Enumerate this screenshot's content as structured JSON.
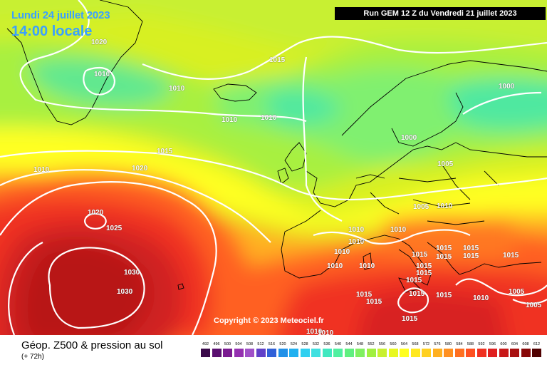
{
  "header": {
    "date": "Lundi 24 juillet 2023",
    "local_time": "14:00 locale",
    "run_info": "Run GEM 12 Z du Vendredi 21 juillet 2023"
  },
  "copyright": "Copyright © 2023 Meteociel.fr",
  "footer": {
    "title": "Géop. Z500 & pression au sol",
    "forecast_offset": "(+ 72h)"
  },
  "scale": {
    "values": [
      "492",
      "496",
      "500",
      "504",
      "508",
      "512",
      "516",
      "520",
      "524",
      "528",
      "532",
      "536",
      "540",
      "544",
      "548",
      "552",
      "556",
      "560",
      "564",
      "568",
      "572",
      "576",
      "580",
      "584",
      "588",
      "592",
      "596",
      "600",
      "604",
      "608",
      "612"
    ],
    "colors": [
      "#3a0a4a",
      "#5a1070",
      "#7a1a90",
      "#9430b0",
      "#a050c8",
      "#6040c8",
      "#3060d8",
      "#2090e8",
      "#20b0f0",
      "#30d0f0",
      "#40e0e0",
      "#40e8c0",
      "#50f0a0",
      "#60f080",
      "#80f060",
      "#a0f040",
      "#c8f030",
      "#e8f820",
      "#ffff20",
      "#ffe820",
      "#ffd020",
      "#ffb020",
      "#ff9020",
      "#ff7020",
      "#ff5020",
      "#f03020",
      "#e02020",
      "#c81818",
      "#a81010",
      "#880808",
      "#500000"
    ]
  },
  "isobar_labels": [
    {
      "text": "1020"
    },
    {
      "text": "1010"
    },
    {
      "text": "1010"
    },
    {
      "text": "1015"
    },
    {
      "text": "1010"
    },
    {
      "text": "1010"
    },
    {
      "text": "1015"
    },
    {
      "text": "1010"
    },
    {
      "text": "1020"
    },
    {
      "text": "1020"
    },
    {
      "text": "1025"
    },
    {
      "text": "1030"
    },
    {
      "text": "1030"
    },
    {
      "text": "1000"
    },
    {
      "text": "1000"
    },
    {
      "text": "1005"
    },
    {
      "text": "1005"
    },
    {
      "text": "1010"
    },
    {
      "text": "1010"
    },
    {
      "text": "1010"
    },
    {
      "text": "1010"
    },
    {
      "text": "1010"
    },
    {
      "text": "1010"
    },
    {
      "text": "1010"
    },
    {
      "text": "1015"
    },
    {
      "text": "1015"
    },
    {
      "text": "1015"
    },
    {
      "text": "1015"
    },
    {
      "text": "1015"
    },
    {
      "text": "1015"
    },
    {
      "text": "1015"
    },
    {
      "text": "1015"
    },
    {
      "text": "1015"
    },
    {
      "text": "1015"
    },
    {
      "text": "1015"
    },
    {
      "text": "1015"
    },
    {
      "text": "1010"
    },
    {
      "text": "1005"
    },
    {
      "text": "1005"
    },
    {
      "text": "1010"
    },
    {
      "text": "1010"
    },
    {
      "text": "1015"
    },
    {
      "text": "1015"
    }
  ]
}
